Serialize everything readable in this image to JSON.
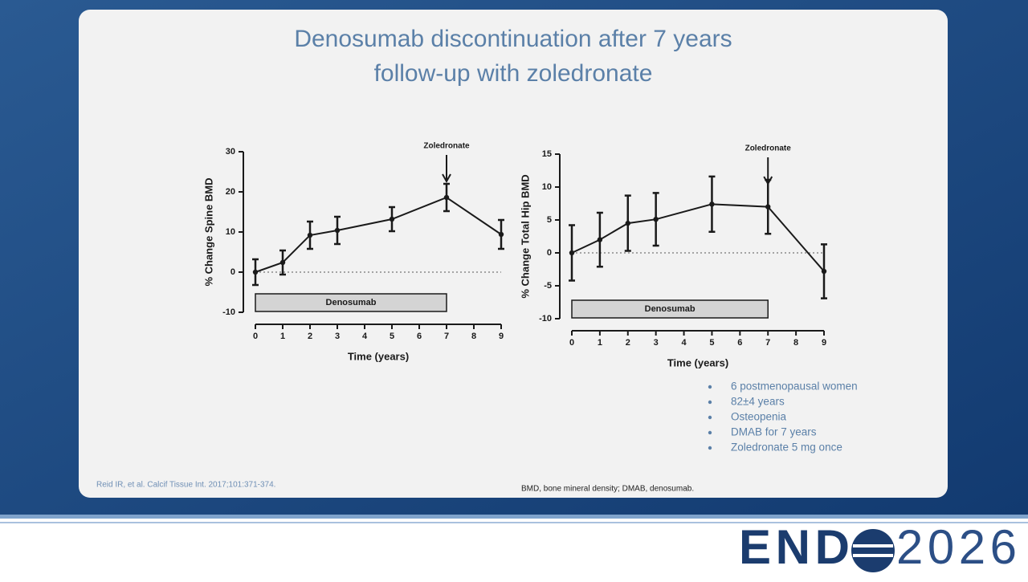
{
  "slide_title": [
    "Denosumab discontinuation after 7 years",
    "follow-up with zoledronate"
  ],
  "chart_data": [
    {
      "type": "line",
      "x": [
        0,
        1,
        2,
        3,
        5,
        7,
        9
      ],
      "series": [
        {
          "name": "Spine BMD",
          "color": "#1a1a1a",
          "values": [
            0,
            2.4,
            9.2,
            10.4,
            13.2,
            18.6,
            9.4
          ],
          "errors": [
            3.2,
            3.0,
            3.4,
            3.4,
            3.0,
            3.4,
            3.6
          ]
        }
      ],
      "xlabel": "Time (years)",
      "ylabel": "% Change Spine BMD",
      "xlim": [
        0,
        9
      ],
      "xticks": [
        0,
        1,
        2,
        3,
        4,
        5,
        6,
        7,
        8,
        9
      ],
      "ylim": [
        -10,
        30
      ],
      "yticks": [
        -10,
        0,
        10,
        20,
        30
      ],
      "hline": 0,
      "annotations": [
        {
          "text": "Zoledronate",
          "x": 7
        },
        {
          "text": "Denosumab",
          "x": [
            0,
            7
          ]
        }
      ]
    },
    {
      "type": "line",
      "x": [
        0,
        1,
        2,
        3,
        5,
        7,
        9
      ],
      "series": [
        {
          "name": "Total Hip BMD",
          "color": "#1a1a1a",
          "values": [
            0,
            2.0,
            4.5,
            5.1,
            7.4,
            7.0,
            -2.8
          ],
          "errors": [
            4.2,
            4.1,
            4.2,
            4.0,
            4.2,
            4.1,
            4.1
          ]
        }
      ],
      "xlabel": "Time (years)",
      "ylabel": "% Change Total Hip BMD",
      "xlim": [
        0,
        9
      ],
      "xticks": [
        0,
        1,
        2,
        3,
        4,
        5,
        6,
        7,
        8,
        9
      ],
      "ylim": [
        -10,
        15
      ],
      "yticks": [
        -10,
        -5,
        0,
        5,
        10,
        15
      ],
      "hline": 0,
      "annotations": [
        {
          "text": "Zoledronate",
          "x": 7
        },
        {
          "text": "Denosumab",
          "x": [
            0,
            7
          ]
        }
      ]
    }
  ],
  "bullets": [
    "6 postmenopausal women",
    "82±4 years",
    "Osteopenia",
    "DMAB for 7 years",
    "Zoledronate 5 mg once"
  ],
  "citation": "Reid IR, et al. Calcif Tissue Int. 2017;101:371-374.",
  "footnote": "BMD, bone mineral density; DMAB, denosumab.",
  "logo": {
    "name": "END",
    "year": "2026"
  }
}
